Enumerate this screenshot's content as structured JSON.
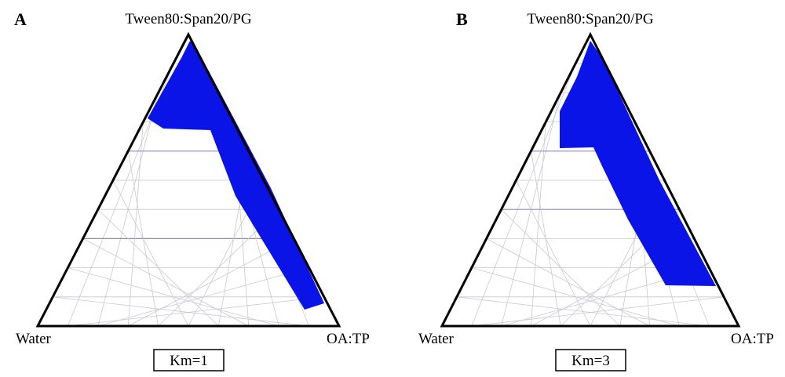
{
  "panels": [
    {
      "letter": "A",
      "top_label": "Tween80:Span20/PG",
      "left_label": "Water",
      "right_label": "OA:TP",
      "km_label": "Km=1",
      "region_color": "#0a14e6"
    },
    {
      "letter": "B",
      "top_label": "Tween80:Span20/PG",
      "left_label": "Water",
      "right_label": "OA:TP",
      "km_label": "Km=3",
      "region_color": "#0a14e6"
    }
  ],
  "colors": {
    "outline": "#000000",
    "grid": "#c8c8d2",
    "grid_major": "#8c8cb4",
    "region": "#0a14e6"
  }
}
